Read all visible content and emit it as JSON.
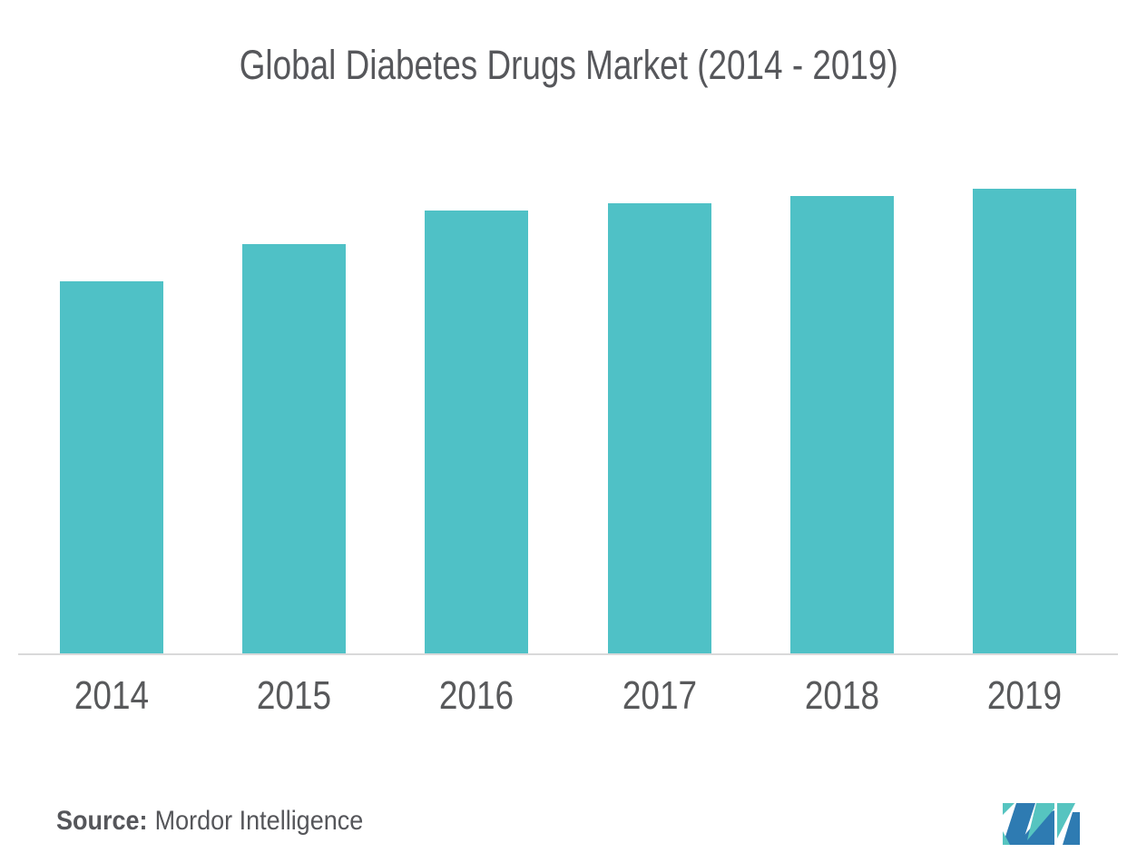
{
  "page": {
    "background_color": "#ffffff"
  },
  "chart_data": {
    "type": "bar",
    "title": "Global Diabetes Drugs Market (2014 - 2019)",
    "categories": [
      "2014",
      "2015",
      "2016",
      "2017",
      "2018",
      "2019"
    ],
    "values": [
      80.1,
      88.1,
      95.3,
      96.9,
      98.4,
      100
    ],
    "values_note": "No numeric y-axis is shown in the chart; values are relative bar heights indexed to 2019 = 100",
    "xlabel": "",
    "ylabel": "",
    "ylim": [
      0,
      100
    ],
    "y_axis_visible": false,
    "gridlines": false,
    "legend": null,
    "bar_color": "#4FC1C6",
    "axis_line_color": "#D9D9DA",
    "label_color": "#58595B",
    "title_color": "#56575B"
  },
  "source": {
    "label": "Source:",
    "text": "Mordor Intelligence",
    "color": "#55565A"
  },
  "logo": {
    "name": "mordor-intelligence-logo-mark",
    "teal": "#56C4C0",
    "blue": "#2E7BB2"
  }
}
